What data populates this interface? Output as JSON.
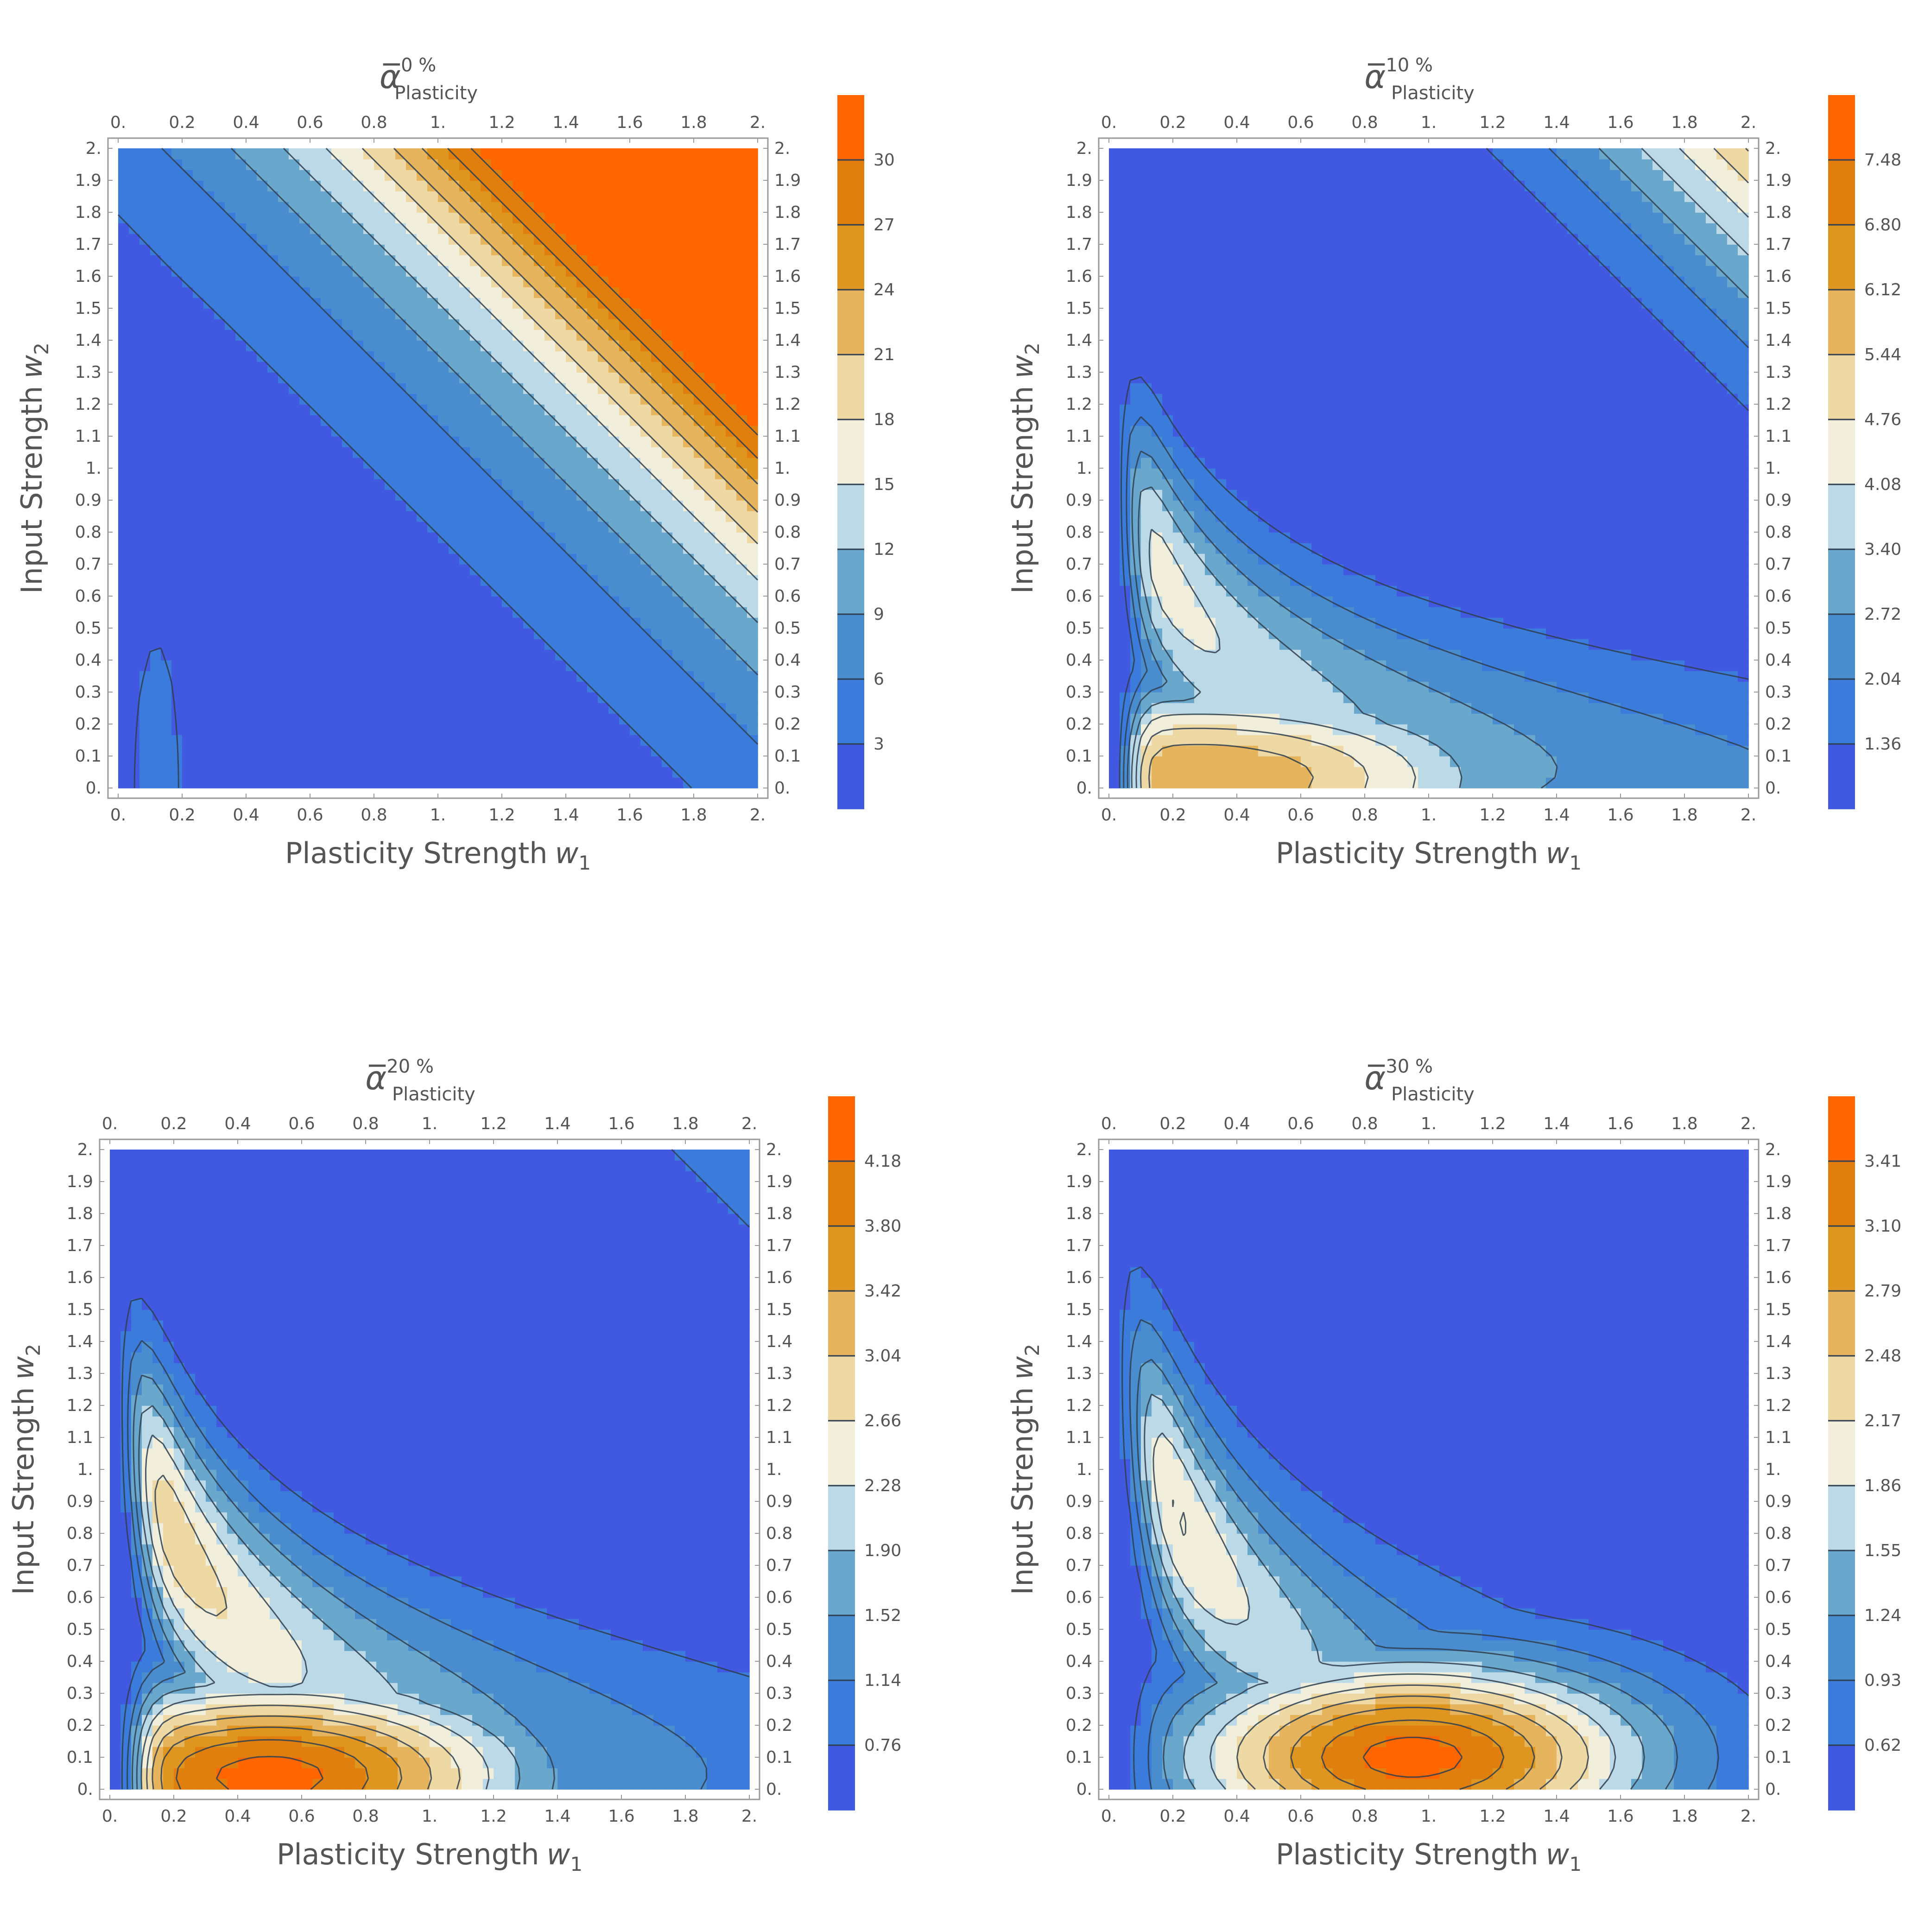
{
  "chart_data": [
    {
      "type": "heatmap",
      "subtype": "contour",
      "title": "α̅",
      "title_superscript": "0 %",
      "title_subscript": "Plasticity",
      "xlabel": "Plasticity Strength",
      "xlabel_var": "w",
      "xlabel_sub": "1",
      "ylabel": "Input Strength",
      "ylabel_var": "w",
      "ylabel_sub": "2",
      "xlim": [
        0,
        2
      ],
      "ylim": [
        0,
        2
      ],
      "x_ticks": [
        "0.",
        "0.2",
        "0.4",
        "0.6",
        "0.8",
        "1.",
        "1.2",
        "1.4",
        "1.6",
        "1.8",
        "2."
      ],
      "y_ticks": [
        "0.",
        "0.1",
        "0.2",
        "0.3",
        "0.4",
        "0.5",
        "0.6",
        "0.7",
        "0.8",
        "0.9",
        "1.",
        "1.1",
        "1.2",
        "1.3",
        "1.4",
        "1.5",
        "1.6",
        "1.7",
        "1.8",
        "1.9",
        "2."
      ],
      "legend_values": [
        "3",
        "6",
        "9",
        "12",
        "15",
        "18",
        "21",
        "24",
        "27",
        "30"
      ],
      "contour_levels": [
        3,
        6,
        9,
        12,
        15,
        18,
        21,
        24,
        27,
        30
      ],
      "z_range": [
        0,
        33
      ],
      "field": {
        "kind": "corner",
        "a": 22.0,
        "p": 4.5,
        "ridge": 3.5,
        "ridge_sx": 0.12,
        "ridge_sy": 0.8
      }
    },
    {
      "type": "heatmap",
      "subtype": "contour",
      "title": "α̅",
      "title_superscript": "10 %",
      "title_subscript": "Plasticity",
      "xlabel": "Plasticity Strength",
      "xlabel_var": "w",
      "xlabel_sub": "1",
      "ylabel": "Input Strength",
      "ylabel_var": "w",
      "ylabel_sub": "2",
      "xlim": [
        0,
        2
      ],
      "ylim": [
        0,
        2
      ],
      "x_ticks": [
        "0.",
        "0.2",
        "0.4",
        "0.6",
        "0.8",
        "1.",
        "1.2",
        "1.4",
        "1.6",
        "1.8",
        "2."
      ],
      "y_ticks": [
        "0.",
        "0.1",
        "0.2",
        "0.3",
        "0.4",
        "0.5",
        "0.6",
        "0.7",
        "0.8",
        "0.9",
        "1.",
        "1.1",
        "1.2",
        "1.3",
        "1.4",
        "1.5",
        "1.6",
        "1.7",
        "1.8",
        "1.9",
        "2."
      ],
      "legend_values": [
        "1.36",
        "2.04",
        "2.72",
        "3.40",
        "4.08",
        "4.76",
        "5.44",
        "6.12",
        "6.80",
        "7.48"
      ],
      "contour_levels": [
        1.36,
        2.04,
        2.72,
        3.4,
        4.08,
        4.76,
        5.44,
        6.12,
        6.8,
        7.48
      ],
      "z_range": [
        0.68,
        8.16
      ],
      "field": {
        "kind": "ridge",
        "peak_x": 0.28,
        "peak_y": 0.03,
        "amp": 5.6,
        "base": 0.5,
        "decay": 1.6,
        "curve": 0.45,
        "rise_x": 0.08,
        "tail": 1.6,
        "corner_a": 5.0,
        "corner_p": 5.0
      }
    },
    {
      "type": "heatmap",
      "subtype": "contour",
      "title": "α̅",
      "title_superscript": "20 %",
      "title_subscript": "Plasticity",
      "xlabel": "Plasticity Strength",
      "xlabel_var": "w",
      "xlabel_sub": "1",
      "ylabel": "Input Strength",
      "ylabel_var": "w",
      "ylabel_sub": "2",
      "xlim": [
        0,
        2
      ],
      "ylim": [
        0,
        2
      ],
      "x_ticks": [
        "0.",
        "0.2",
        "0.4",
        "0.6",
        "0.8",
        "1.",
        "1.2",
        "1.4",
        "1.6",
        "1.8",
        "2."
      ],
      "y_ticks": [
        "0.",
        "0.1",
        "0.2",
        "0.3",
        "0.4",
        "0.5",
        "0.6",
        "0.7",
        "0.8",
        "0.9",
        "1.",
        "1.1",
        "1.2",
        "1.3",
        "1.4",
        "1.5",
        "1.6",
        "1.7",
        "1.8",
        "1.9",
        "2."
      ],
      "legend_values": [
        "0.76",
        "1.14",
        "1.52",
        "1.90",
        "2.28",
        "2.66",
        "3.04",
        "3.42",
        "3.80",
        "4.18"
      ],
      "contour_levels": [
        0.76,
        1.14,
        1.52,
        1.9,
        2.28,
        2.66,
        3.04,
        3.42,
        3.8,
        4.18
      ],
      "z_range": [
        0.38,
        4.56
      ],
      "field": {
        "kind": "ridge",
        "peak_x": 0.5,
        "peak_y": 0.04,
        "amp": 4.0,
        "base": 0.35,
        "decay": 0.9,
        "curve": 0.55,
        "rise_x": 0.1,
        "tail": 0.8,
        "corner_a": 0.6,
        "corner_p": 5.0
      }
    },
    {
      "type": "heatmap",
      "subtype": "contour",
      "title": "α̅",
      "title_superscript": "30 %",
      "title_subscript": "Plasticity",
      "xlabel": "Plasticity Strength",
      "xlabel_var": "w",
      "xlabel_sub": "1",
      "ylabel": "Input Strength",
      "ylabel_var": "w",
      "ylabel_sub": "2",
      "xlim": [
        0,
        2
      ],
      "ylim": [
        0,
        2
      ],
      "x_ticks": [
        "0.",
        "0.2",
        "0.4",
        "0.6",
        "0.8",
        "1.",
        "1.2",
        "1.4",
        "1.6",
        "1.8",
        "2."
      ],
      "y_ticks": [
        "0.",
        "0.1",
        "0.2",
        "0.3",
        "0.4",
        "0.5",
        "0.6",
        "0.7",
        "0.8",
        "0.9",
        "1.",
        "1.1",
        "1.2",
        "1.3",
        "1.4",
        "1.5",
        "1.6",
        "1.7",
        "1.8",
        "1.9",
        "2."
      ],
      "legend_values": [
        "0.62",
        "0.93",
        "1.24",
        "1.55",
        "1.86",
        "2.17",
        "2.48",
        "2.79",
        "3.10",
        "3.41"
      ],
      "contour_levels": [
        0.62,
        0.93,
        1.24,
        1.55,
        1.86,
        2.17,
        2.48,
        2.79,
        3.1,
        3.41
      ],
      "z_range": [
        0.31,
        3.72
      ],
      "field": {
        "kind": "ridge",
        "peak_x": 0.95,
        "peak_y": 0.1,
        "amp": 3.2,
        "base": 0.35,
        "decay": 0.7,
        "curve": 0.6,
        "rise_x": 0.12,
        "tail": 0.35,
        "corner_a": 0.0,
        "corner_p": 5.0
      }
    }
  ],
  "colors": {
    "bands": [
      "#4159e1",
      "#3b7bdb",
      "#4a8dcf",
      "#6aa7cc",
      "#bcd9e8",
      "#f1efdc",
      "#eed8a3",
      "#e6b45c",
      "#df9620",
      "#e07f0e",
      "#ff6600"
    ],
    "contour_line": "#2f3f4f",
    "axis": "#555555",
    "frame": "#9a9a9a"
  }
}
